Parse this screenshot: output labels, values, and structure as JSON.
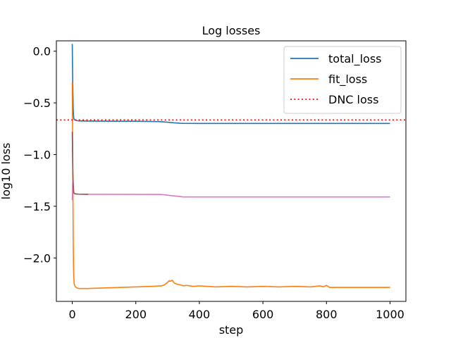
{
  "chart_data": {
    "type": "line",
    "title": "Log losses",
    "xlabel": "step",
    "ylabel": "log10 loss",
    "xlim": [
      -50,
      1050
    ],
    "ylim": [
      -2.42,
      0.1
    ],
    "xticks": [
      0,
      200,
      400,
      600,
      800,
      1000
    ],
    "xtick_labels": [
      "0",
      "200",
      "400",
      "600",
      "800",
      "1000"
    ],
    "yticks": [
      0.0,
      -0.5,
      -1.0,
      -1.5,
      -2.0
    ],
    "ytick_labels": [
      "0.0",
      "−0.5",
      "−1.0",
      "−1.5",
      "−2.0"
    ],
    "grid": false,
    "legend_position": "top-right",
    "series": [
      {
        "name": "total_loss",
        "color": "#1f77b4",
        "style": "solid",
        "x": [
          0,
          1,
          2,
          3,
          4,
          5,
          6,
          8,
          10,
          15,
          20,
          30,
          50,
          100,
          150,
          200,
          250,
          280,
          300,
          320,
          340,
          350,
          400,
          500,
          600,
          700,
          800,
          900,
          1000
        ],
        "y": [
          0.07,
          -0.2,
          -0.4,
          -0.55,
          -0.62,
          -0.65,
          -0.66,
          -0.665,
          -0.668,
          -0.672,
          -0.674,
          -0.675,
          -0.676,
          -0.677,
          -0.678,
          -0.678,
          -0.68,
          -0.682,
          -0.687,
          -0.693,
          -0.697,
          -0.698,
          -0.699,
          -0.699,
          -0.699,
          -0.699,
          -0.699,
          -0.699,
          -0.699
        ]
      },
      {
        "name": "fit_loss",
        "color": "#ff7f0e",
        "style": "solid",
        "x": [
          0,
          1,
          2,
          3,
          4,
          5,
          6,
          8,
          10,
          15,
          20,
          30,
          50,
          100,
          150,
          200,
          250,
          280,
          290,
          300,
          305,
          310,
          315,
          320,
          330,
          340,
          350,
          360,
          380,
          400,
          450,
          500,
          550,
          600,
          650,
          700,
          750,
          780,
          790,
          800,
          810,
          850,
          900,
          950,
          1000
        ],
        "y": [
          -0.3,
          -0.8,
          -1.3,
          -1.8,
          -2.1,
          -2.2,
          -2.25,
          -2.27,
          -2.28,
          -2.29,
          -2.295,
          -2.295,
          -2.295,
          -2.29,
          -2.285,
          -2.28,
          -2.275,
          -2.27,
          -2.26,
          -2.235,
          -2.22,
          -2.225,
          -2.215,
          -2.24,
          -2.255,
          -2.26,
          -2.27,
          -2.265,
          -2.275,
          -2.27,
          -2.28,
          -2.275,
          -2.28,
          -2.275,
          -2.28,
          -2.275,
          -2.28,
          -2.27,
          -2.28,
          -2.265,
          -2.285,
          -2.285,
          -2.285,
          -2.285,
          -2.285
        ]
      },
      {
        "name": "",
        "color": "#e377c2",
        "style": "solid",
        "legend": false,
        "x": [
          0,
          1,
          2,
          3,
          4,
          5,
          6,
          8,
          10,
          15,
          20,
          50,
          100,
          200,
          280,
          300,
          330,
          350,
          400,
          500,
          600,
          700,
          800,
          900,
          1000
        ],
        "y": [
          -1.44,
          -1.3,
          -1.25,
          -1.3,
          -1.36,
          -1.37,
          -1.375,
          -1.378,
          -1.38,
          -1.382,
          -1.383,
          -1.384,
          -1.384,
          -1.385,
          -1.386,
          -1.393,
          -1.403,
          -1.41,
          -1.41,
          -1.41,
          -1.41,
          -1.41,
          -1.41,
          -1.41,
          -1.41
        ]
      },
      {
        "name": "",
        "color": "#8c564b",
        "style": "solid",
        "legend": false,
        "x": [
          0,
          1,
          2,
          3,
          4,
          5,
          6,
          8,
          10,
          15,
          20,
          50
        ],
        "y": [
          -0.78,
          -1.0,
          -1.2,
          -1.28,
          -1.34,
          -1.37,
          -1.375,
          -1.378,
          -1.38,
          -1.382,
          -1.383,
          -1.384
        ]
      }
    ],
    "reference_lines": [
      {
        "name": "DNC loss",
        "color": "#ff0000",
        "style": "dotted",
        "y": -0.665
      }
    ],
    "legend_entries": [
      "total_loss",
      "fit_loss",
      "DNC loss"
    ]
  }
}
